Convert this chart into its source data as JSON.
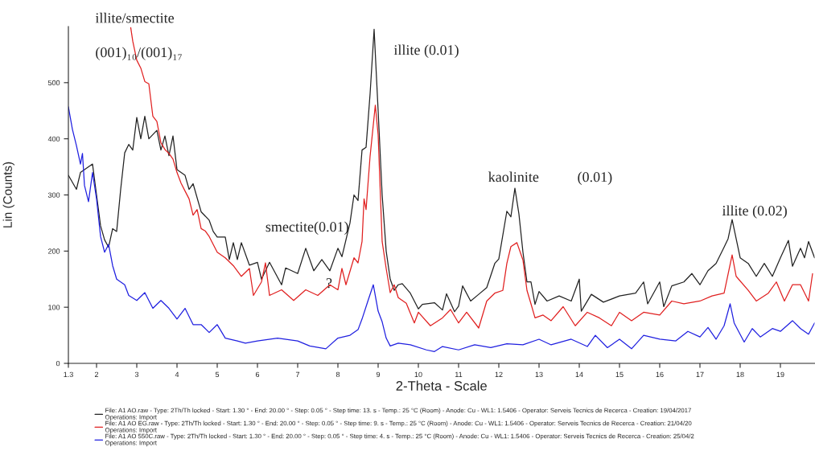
{
  "chart_data": {
    "type": "line",
    "xlabel": "2-Theta - Scale",
    "ylabel": "Lin (Counts)",
    "xlim": [
      1.3,
      19.85
    ],
    "xticks": [
      1.3,
      2,
      3,
      4,
      5,
      6,
      7,
      8,
      9,
      10,
      11,
      12,
      13,
      14,
      15,
      16,
      17,
      18,
      19
    ],
    "ylim": [
      0,
      600
    ],
    "yticks": [
      0,
      100,
      200,
      300,
      400,
      500
    ],
    "grid": false,
    "legend": "bottom",
    "marker": "none",
    "line_style": "solid",
    "series": [
      {
        "name": "File: A1 AO.raw - Type: 2Th/Th locked - Start: 1.30 ° - End: 20.00 ° - Step: 0.05 ° - Step time: 13. s - Temp.: 25 °C (Room) - Anode: Cu - WL1: 1.5406 - Operator: Serveis Tecnics de Recerca - Creation: 19/04/2017\nOperations: Import",
        "color": "#222222",
        "x": [
          1.3,
          1.5,
          1.6,
          1.9,
          2.0,
          2.1,
          2.2,
          2.3,
          2.4,
          2.5,
          2.6,
          2.7,
          2.8,
          2.9,
          3.0,
          3.1,
          3.2,
          3.3,
          3.5,
          3.6,
          3.7,
          3.8,
          3.9,
          4.0,
          4.2,
          4.3,
          4.4,
          4.6,
          4.8,
          4.9,
          5.0,
          5.2,
          5.3,
          5.4,
          5.5,
          5.6,
          5.8,
          6.0,
          6.1,
          6.3,
          6.6,
          6.7,
          7.0,
          7.2,
          7.4,
          7.6,
          7.8,
          8.0,
          8.1,
          8.3,
          8.4,
          8.5,
          8.6,
          8.7,
          8.8,
          8.9,
          9.0,
          9.1,
          9.2,
          9.3,
          9.4,
          9.5,
          9.6,
          9.8,
          10.0,
          10.1,
          10.4,
          10.6,
          10.7,
          10.9,
          11.0,
          11.1,
          11.3,
          11.5,
          11.7,
          11.9,
          12.0,
          12.2,
          12.3,
          12.4,
          12.5,
          12.6,
          12.7,
          12.8,
          12.9,
          13.0,
          13.2,
          13.5,
          13.8,
          14.0,
          14.05,
          14.3,
          14.6,
          15.0,
          15.4,
          15.6,
          15.7,
          16.0,
          16.1,
          16.3,
          16.6,
          16.8,
          17.0,
          17.2,
          17.4,
          17.6,
          17.7,
          17.8,
          17.9,
          18.0,
          18.2,
          18.4,
          18.6,
          18.8,
          19.0,
          19.2,
          19.3,
          19.5,
          19.6,
          19.7,
          19.85
        ],
        "values": [
          335,
          310,
          340,
          355,
          300,
          245,
          220,
          207,
          240,
          235,
          310,
          375,
          390,
          380,
          438,
          400,
          440,
          400,
          415,
          380,
          405,
          370,
          405,
          345,
          335,
          310,
          320,
          270,
          255,
          235,
          225,
          225,
          185,
          215,
          185,
          215,
          175,
          180,
          150,
          180,
          140,
          170,
          160,
          205,
          165,
          185,
          165,
          205,
          190,
          250,
          300,
          290,
          380,
          385,
          480,
          595,
          450,
          300,
          200,
          150,
          130,
          140,
          142,
          125,
          97,
          105,
          108,
          95,
          124,
          92,
          102,
          138,
          111,
          123,
          135,
          178,
          186,
          271,
          261,
          312,
          266,
          198,
          145,
          145,
          105,
          128,
          111,
          120,
          111,
          150,
          93,
          123,
          109,
          120,
          125,
          145,
          106,
          145,
          101,
          138,
          145,
          160,
          140,
          165,
          178,
          207,
          222,
          256,
          222,
          188,
          178,
          155,
          178,
          155,
          188,
          219,
          173,
          205,
          188,
          217,
          188
        ]
      },
      {
        "name": "File: A1 AO EG.raw - Type: 2Th/Th locked - Start: 1.30 ° - End: 20.00 ° - Step: 0.05 ° - Step time: 9. s - Temp.: 25 °C (Room) - Anode: Cu - WL1: 1.5406 - Operator: Serveis Tecnics de Recerca - Creation: 21/04/20\nOperations: Import",
        "color": "#e02020",
        "x": [
          2.85,
          2.9,
          3.0,
          3.1,
          3.2,
          3.3,
          3.4,
          3.5,
          3.6,
          3.7,
          3.8,
          3.9,
          4.0,
          4.1,
          4.2,
          4.3,
          4.4,
          4.5,
          4.6,
          4.7,
          4.8,
          5.0,
          5.2,
          5.4,
          5.6,
          5.8,
          5.9,
          6.1,
          6.2,
          6.3,
          6.6,
          6.9,
          7.2,
          7.5,
          7.8,
          8.0,
          8.1,
          8.2,
          8.4,
          8.5,
          8.6,
          8.65,
          8.7,
          8.8,
          8.93,
          9.0,
          9.1,
          9.2,
          9.3,
          9.4,
          9.5,
          9.7,
          9.9,
          10.0,
          10.3,
          10.6,
          10.8,
          11.0,
          11.2,
          11.5,
          11.7,
          11.9,
          12.1,
          12.2,
          12.3,
          12.45,
          12.6,
          12.7,
          12.8,
          12.9,
          13.1,
          13.3,
          13.6,
          13.9,
          14.2,
          14.5,
          14.8,
          15.0,
          15.3,
          15.6,
          16.0,
          16.3,
          16.6,
          17.0,
          17.3,
          17.6,
          17.8,
          17.9,
          18.2,
          18.4,
          18.7,
          18.9,
          19.1,
          19.3,
          19.5,
          19.7,
          19.8
        ],
        "values": [
          598,
          574,
          540,
          526,
          502,
          498,
          440,
          431,
          393,
          381,
          374,
          364,
          340,
          321,
          307,
          293,
          264,
          274,
          240,
          236,
          226,
          198,
          188,
          174,
          155,
          169,
          121,
          145,
          179,
          121,
          131,
          112,
          131,
          121,
          140,
          131,
          169,
          140,
          188,
          179,
          217,
          293,
          274,
          369,
          460,
          407,
          217,
          169,
          126,
          140,
          117,
          107,
          72,
          91,
          67,
          81,
          96,
          72,
          91,
          63,
          111,
          125,
          130,
          178,
          208,
          215,
          184,
          130,
          106,
          81,
          86,
          76,
          101,
          67,
          91,
          81,
          67,
          91,
          76,
          91,
          86,
          111,
          106,
          111,
          120,
          125,
          193,
          155,
          130,
          111,
          125,
          145,
          111,
          140,
          140,
          111,
          160
        ]
      },
      {
        "name": "File: A1 AO 550C.raw - Type: 2Th/Th locked - Start: 1.30 ° - End: 20.00 ° - Step: 0.05 ° - Step time: 4. s - Temp.: 25 °C (Room) - Anode: Cu - WL1: 1.5406 - Operator: Serveis Tecnics de Recerca - Creation: 25/04/2\nOperations: Import",
        "color": "#2020e0",
        "x": [
          1.3,
          1.4,
          1.5,
          1.6,
          1.65,
          1.7,
          1.8,
          1.9,
          2.0,
          2.1,
          2.2,
          2.3,
          2.4,
          2.5,
          2.7,
          2.8,
          3.0,
          3.2,
          3.4,
          3.6,
          3.8,
          4.0,
          4.2,
          4.4,
          4.6,
          4.8,
          5.0,
          5.2,
          5.5,
          5.7,
          6.0,
          6.5,
          7.0,
          7.3,
          7.7,
          8.0,
          8.3,
          8.5,
          8.6,
          8.75,
          8.88,
          9.0,
          9.1,
          9.2,
          9.3,
          9.5,
          9.8,
          10.2,
          10.4,
          10.6,
          11.0,
          11.4,
          11.8,
          12.2,
          12.6,
          13.0,
          13.3,
          13.8,
          14.2,
          14.4,
          14.7,
          15.0,
          15.3,
          15.6,
          16.0,
          16.4,
          16.7,
          17.0,
          17.2,
          17.4,
          17.6,
          17.75,
          17.85,
          18.1,
          18.3,
          18.5,
          18.8,
          19.0,
          19.3,
          19.5,
          19.7,
          19.85
        ],
        "values": [
          457,
          417,
          388,
          355,
          374,
          317,
          288,
          340,
          293,
          226,
          198,
          212,
          174,
          150,
          140,
          121,
          112,
          126,
          98,
          112,
          98,
          79,
          98,
          69,
          69,
          55,
          69,
          45,
          40,
          36,
          40,
          45,
          40,
          31,
          26,
          45,
          50,
          60,
          79,
          112,
          140,
          93,
          74,
          45,
          31,
          36,
          33,
          24,
          21,
          30,
          24,
          33,
          28,
          35,
          33,
          43,
          33,
          43,
          30,
          50,
          28,
          43,
          26,
          50,
          43,
          40,
          57,
          47,
          64,
          43,
          67,
          106,
          72,
          38,
          62,
          47,
          62,
          57,
          76,
          62,
          52,
          72
        ]
      }
    ],
    "annotations": [
      "illite/smectite",
      "(001)₁₀/(001)₁₇",
      "illite (0.01)",
      "smectite(0.01)",
      "?",
      "kaolinite",
      "(0.01)",
      "illite (0.02)"
    ]
  }
}
